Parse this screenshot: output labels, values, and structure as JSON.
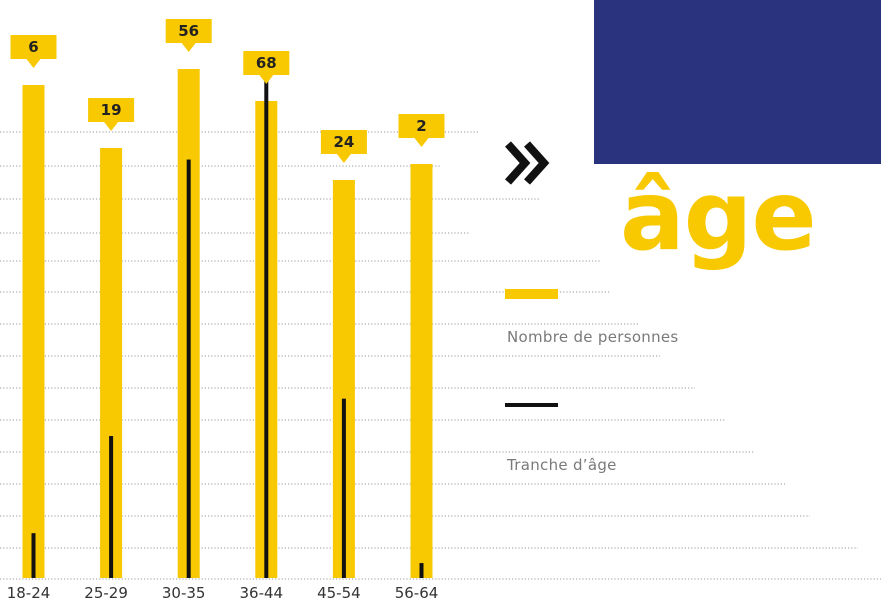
{
  "chart_data": {
    "type": "bar",
    "title": "âge",
    "categories": [
      "18-24",
      "25-29",
      "30-35",
      "36-44",
      "45-54",
      "56-64"
    ],
    "series": [
      {
        "name": "Nombre de personnes",
        "values": [
          6,
          19,
          56,
          68,
          24,
          2
        ],
        "color": "#f8c800"
      }
    ],
    "ylim": [
      0,
      72
    ],
    "grid": true,
    "legend": [
      {
        "label": "Nombre de personnes",
        "color": "#f8c800"
      },
      {
        "label": "Tranche d’âge",
        "color": "#111111"
      }
    ]
  },
  "colors": {
    "accent": "#f8c800",
    "navy": "#2a347e",
    "ink": "#111111"
  },
  "icons": {
    "arrows": "double-chevron-right-icon"
  }
}
